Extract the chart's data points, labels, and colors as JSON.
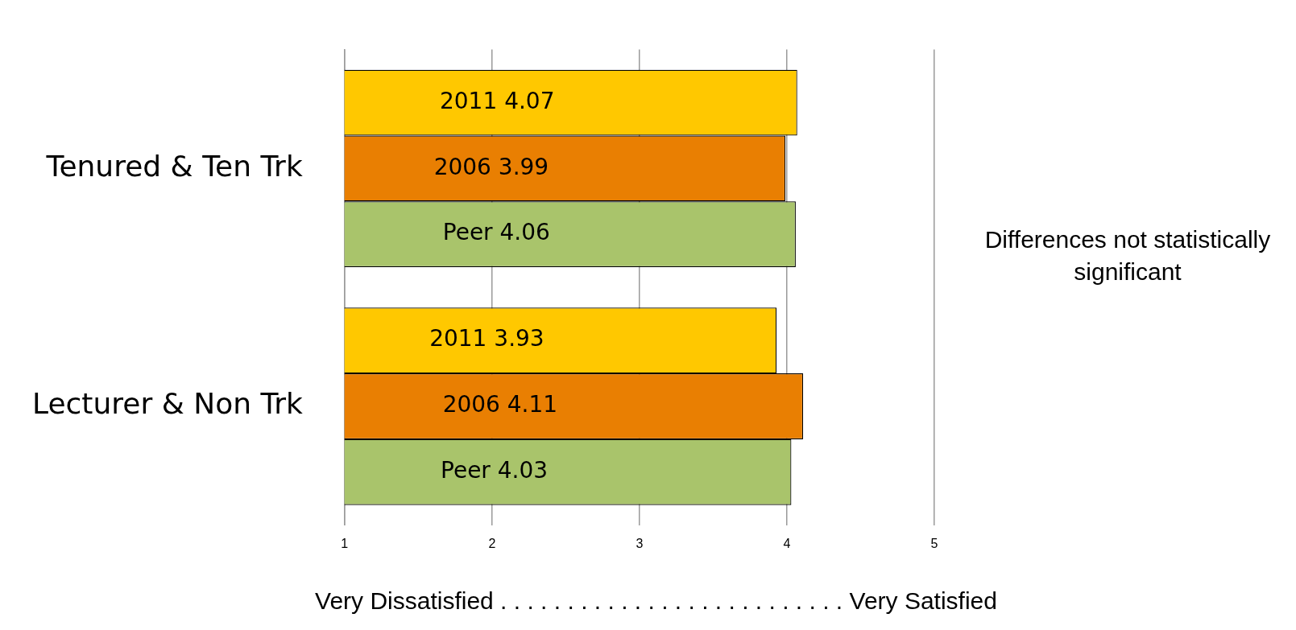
{
  "chart_data": {
    "type": "bar",
    "orientation": "horizontal",
    "categories": [
      "Tenured & Ten Trk",
      "Lecturer & Non Trk"
    ],
    "series": [
      {
        "name": "2011",
        "color": "#ffc800",
        "values": [
          4.07,
          3.93
        ]
      },
      {
        "name": "2006",
        "color": "#e97f02",
        "values": [
          3.99,
          4.11
        ]
      },
      {
        "name": "Peer",
        "color": "#a9c46b",
        "values": [
          4.06,
          4.03
        ]
      }
    ],
    "data_labels": true,
    "xlim": [
      1,
      5
    ],
    "xticks": [
      1,
      2,
      3,
      4,
      5
    ],
    "grid": "x",
    "legend": false,
    "xlabel": "Very Dissatisfied . . . . . . . . . . . . . . . . . . . . . . . . . . Very Satisfied",
    "annotations": [
      "Differences not statistically significant"
    ]
  }
}
